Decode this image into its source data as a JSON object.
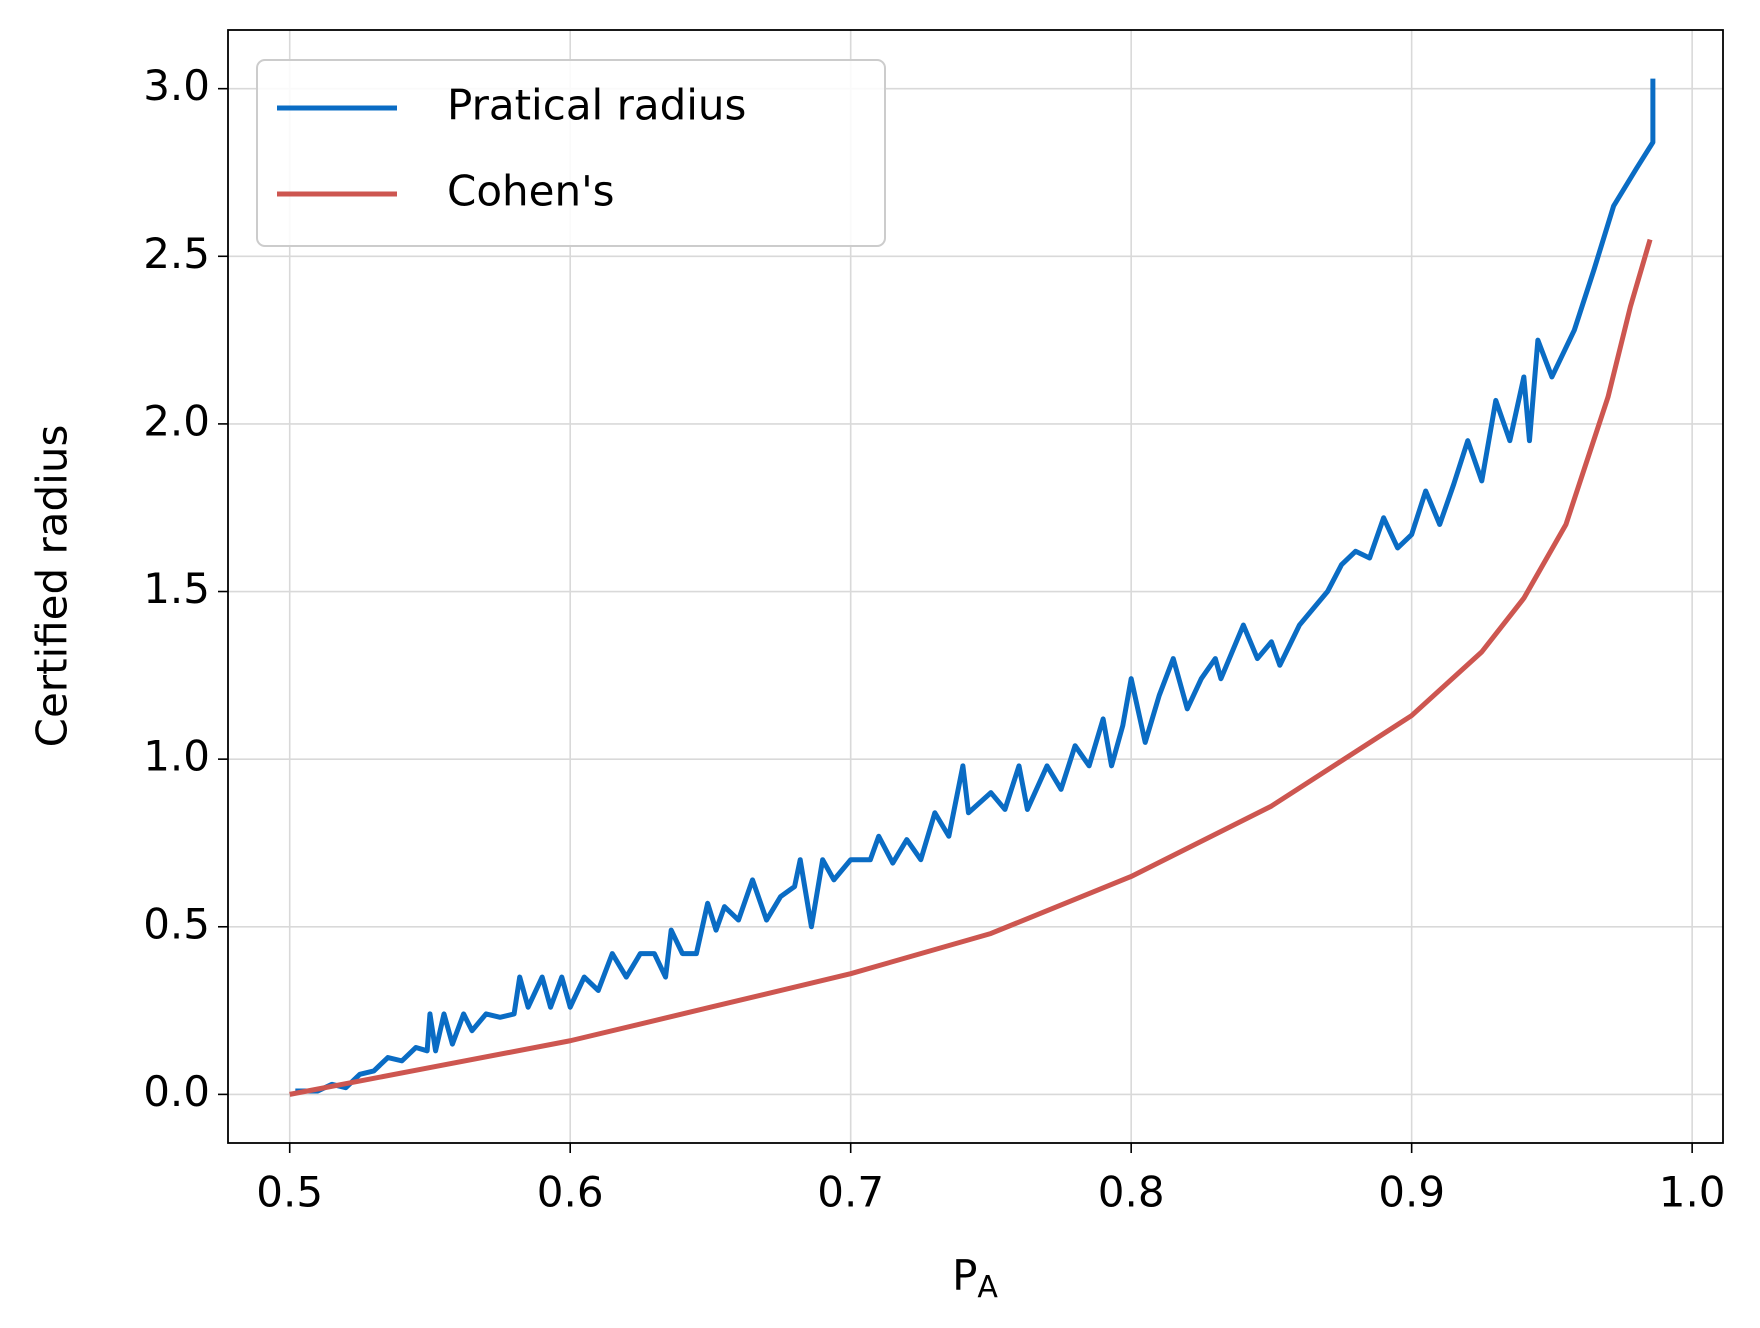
{
  "chart_data": {
    "type": "line",
    "xlabel": "P",
    "xlabel_subscript": "A",
    "ylabel": "Certified radius",
    "xlim": [
      0.478,
      1.011
    ],
    "ylim": [
      -0.145,
      3.175
    ],
    "xticks": [
      0.5,
      0.6,
      0.7,
      0.8,
      0.9,
      {
        "value": 1,
        "label": "1.0"
      }
    ],
    "yticks": [
      {
        "value": 0,
        "label": "0.0"
      },
      0.5,
      {
        "value": 1,
        "label": "1.0"
      },
      1.5,
      {
        "value": 2,
        "label": "2.0"
      },
      2.5,
      {
        "value": 3,
        "label": "3.0"
      }
    ],
    "grid": true,
    "legend": "upper left",
    "series": [
      {
        "name": "Pratical radius",
        "color": "#0a6cc4",
        "x": [
          0.502,
          0.51,
          0.515,
          0.52,
          0.525,
          0.53,
          0.535,
          0.54,
          0.545,
          0.549,
          0.55,
          0.552,
          0.555,
          0.558,
          0.562,
          0.565,
          0.57,
          0.575,
          0.58,
          0.582,
          0.585,
          0.59,
          0.593,
          0.597,
          0.6,
          0.605,
          0.61,
          0.615,
          0.62,
          0.625,
          0.63,
          0.634,
          0.636,
          0.64,
          0.645,
          0.649,
          0.652,
          0.655,
          0.66,
          0.665,
          0.67,
          0.675,
          0.68,
          0.682,
          0.686,
          0.69,
          0.694,
          0.7,
          0.707,
          0.71,
          0.715,
          0.72,
          0.725,
          0.73,
          0.735,
          0.74,
          0.742,
          0.75,
          0.755,
          0.76,
          0.763,
          0.77,
          0.775,
          0.78,
          0.785,
          0.79,
          0.793,
          0.797,
          0.8,
          0.805,
          0.81,
          0.815,
          0.82,
          0.825,
          0.83,
          0.832,
          0.84,
          0.845,
          0.85,
          0.853,
          0.86,
          0.865,
          0.87,
          0.875,
          0.88,
          0.885,
          0.89,
          0.895,
          0.9,
          0.905,
          0.91,
          0.915,
          0.92,
          0.925,
          0.93,
          0.935,
          0.94,
          0.942,
          0.945,
          0.95,
          0.958,
          0.965,
          0.972,
          0.98,
          0.986,
          0.986
        ],
        "values": [
          0.01,
          0.01,
          0.03,
          0.02,
          0.06,
          0.07,
          0.11,
          0.1,
          0.14,
          0.13,
          0.24,
          0.13,
          0.24,
          0.15,
          0.24,
          0.19,
          0.24,
          0.23,
          0.24,
          0.35,
          0.26,
          0.35,
          0.26,
          0.35,
          0.26,
          0.35,
          0.31,
          0.42,
          0.35,
          0.42,
          0.42,
          0.35,
          0.49,
          0.42,
          0.42,
          0.57,
          0.49,
          0.56,
          0.52,
          0.64,
          0.52,
          0.59,
          0.62,
          0.7,
          0.5,
          0.7,
          0.64,
          0.7,
          0.7,
          0.77,
          0.69,
          0.76,
          0.7,
          0.84,
          0.77,
          0.98,
          0.84,
          0.9,
          0.85,
          0.98,
          0.85,
          0.98,
          0.91,
          1.04,
          0.98,
          1.12,
          0.98,
          1.1,
          1.24,
          1.05,
          1.19,
          1.3,
          1.15,
          1.24,
          1.3,
          1.24,
          1.4,
          1.3,
          1.35,
          1.28,
          1.4,
          1.45,
          1.5,
          1.58,
          1.62,
          1.6,
          1.72,
          1.63,
          1.67,
          1.8,
          1.7,
          1.82,
          1.95,
          1.83,
          2.07,
          1.95,
          2.14,
          1.95,
          2.25,
          2.14,
          2.28,
          2.46,
          2.65,
          2.76,
          2.84,
          3.03
        ]
      },
      {
        "name": "Cohen's",
        "color": "#cd5650",
        "x": [
          0.5,
          0.55,
          0.6,
          0.65,
          0.7,
          0.75,
          0.8,
          0.85,
          0.9,
          0.925,
          0.94,
          0.955,
          0.97,
          0.978,
          0.985
        ],
        "values": [
          0,
          0.08,
          0.16,
          0.26,
          0.36,
          0.48,
          0.65,
          0.86,
          1.13,
          1.32,
          1.48,
          1.7,
          2.08,
          2.35,
          2.55
        ]
      }
    ]
  }
}
